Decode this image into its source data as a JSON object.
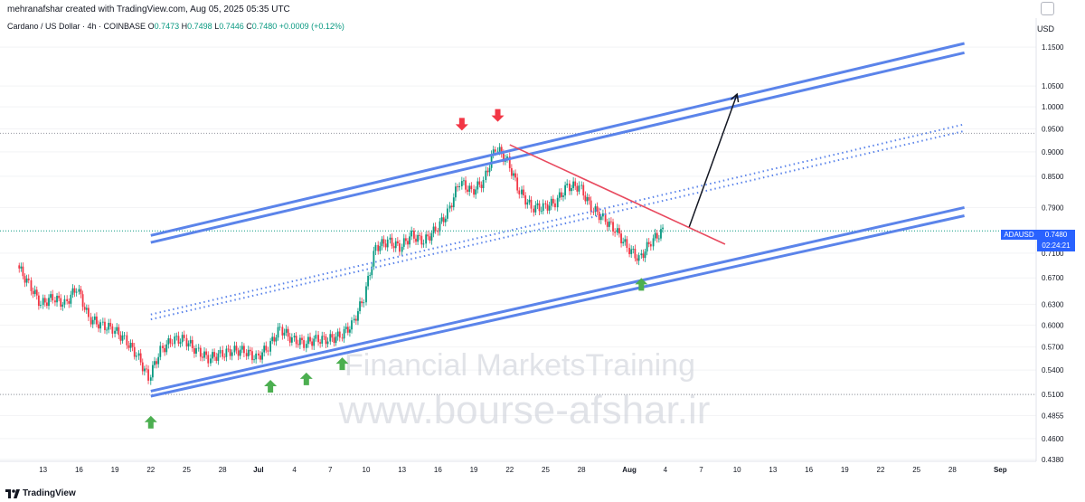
{
  "header": {
    "author_line": "mehranafshar created with TradingView.com, Aug 05, 2025 05:35 UTC",
    "currency": "USD"
  },
  "legend": {
    "symbol": "Cardano / US Dollar · 4h · COINBASE",
    "open_label": "O",
    "open": "0.7473",
    "high_label": "H",
    "high": "0.7498",
    "low_label": "L",
    "low": "0.7446",
    "close_label": "C",
    "close": "0.7480",
    "change": "+0.0009 (+0.12%)"
  },
  "price_label": {
    "ticker": "ADAUSD",
    "price": "0.7480",
    "countdown": "02:24:21"
  },
  "footer": {
    "brand": "TradingView"
  },
  "watermark": {
    "line1": "Financial MarketsTraining",
    "line2": "www.bourse-afshar.ir"
  },
  "colors": {
    "up": "#089981",
    "down": "#f23645",
    "channel": "#5b84ea",
    "resistance": "#e84a5f",
    "up_arrow": "#4caf50",
    "down_arrow": "#f23645",
    "price_tag": "#2962ff"
  },
  "chart_data": {
    "type": "candlestick",
    "title": "Cardano / US Dollar · 4h · COINBASE",
    "y_scale": "log",
    "ylim": [
      0.438,
      1.2
    ],
    "y_ticks": [
      "1.1500",
      "1.0500",
      "1.0000",
      "0.9500",
      "0.9000",
      "0.8500",
      "0.7900",
      "0.7100",
      "0.6700",
      "0.6300",
      "0.6000",
      "0.5700",
      "0.5400",
      "0.5100",
      "0.4855",
      "0.4600",
      "0.4380"
    ],
    "x_ticks": [
      "13",
      "16",
      "19",
      "22",
      "25",
      "28",
      "Jul",
      "4",
      "7",
      "10",
      "13",
      "16",
      "19",
      "22",
      "25",
      "28",
      "Aug",
      "4",
      "7",
      "10",
      "13",
      "16",
      "19",
      "22",
      "25",
      "28",
      "Sep"
    ],
    "x_tick_dates": [
      "2025-06-13",
      "2025-06-16",
      "2025-06-19",
      "2025-06-22",
      "2025-06-25",
      "2025-06-28",
      "2025-07-01",
      "2025-07-04",
      "2025-07-07",
      "2025-07-10",
      "2025-07-13",
      "2025-07-16",
      "2025-07-19",
      "2025-07-22",
      "2025-07-25",
      "2025-07-28",
      "2025-08-01",
      "2025-08-04",
      "2025-08-07",
      "2025-08-10",
      "2025-08-13",
      "2025-08-16",
      "2025-08-19",
      "2025-08-22",
      "2025-08-25",
      "2025-08-28",
      "2025-09-01"
    ],
    "closes": [
      [
        "2025-06-11",
        0.69
      ],
      [
        "2025-06-12",
        0.66
      ],
      [
        "2025-06-13",
        0.63
      ],
      [
        "2025-06-14",
        0.64
      ],
      [
        "2025-06-15",
        0.63
      ],
      [
        "2025-06-16",
        0.655
      ],
      [
        "2025-06-17",
        0.61
      ],
      [
        "2025-06-18",
        0.6
      ],
      [
        "2025-06-19",
        0.595
      ],
      [
        "2025-06-20",
        0.58
      ],
      [
        "2025-06-21",
        0.56
      ],
      [
        "2025-06-22",
        0.53
      ],
      [
        "2025-06-23",
        0.565
      ],
      [
        "2025-06-24",
        0.58
      ],
      [
        "2025-06-25",
        0.58
      ],
      [
        "2025-06-26",
        0.565
      ],
      [
        "2025-06-27",
        0.555
      ],
      [
        "2025-06-28",
        0.56
      ],
      [
        "2025-06-29",
        0.565
      ],
      [
        "2025-06-30",
        0.565
      ],
      [
        "2025-07-01",
        0.555
      ],
      [
        "2025-07-02",
        0.57
      ],
      [
        "2025-07-03",
        0.595
      ],
      [
        "2025-07-04",
        0.58
      ],
      [
        "2025-07-05",
        0.575
      ],
      [
        "2025-07-06",
        0.58
      ],
      [
        "2025-07-07",
        0.58
      ],
      [
        "2025-07-08",
        0.585
      ],
      [
        "2025-07-09",
        0.6
      ],
      [
        "2025-07-10",
        0.64
      ],
      [
        "2025-07-11",
        0.72
      ],
      [
        "2025-07-12",
        0.73
      ],
      [
        "2025-07-13",
        0.72
      ],
      [
        "2025-07-14",
        0.74
      ],
      [
        "2025-07-15",
        0.73
      ],
      [
        "2025-07-16",
        0.75
      ],
      [
        "2025-07-17",
        0.78
      ],
      [
        "2025-07-18",
        0.84
      ],
      [
        "2025-07-19",
        0.82
      ],
      [
        "2025-07-20",
        0.84
      ],
      [
        "2025-07-21",
        0.91
      ],
      [
        "2025-07-22",
        0.88
      ],
      [
        "2025-07-23",
        0.82
      ],
      [
        "2025-07-24",
        0.79
      ],
      [
        "2025-07-25",
        0.79
      ],
      [
        "2025-07-26",
        0.8
      ],
      [
        "2025-07-27",
        0.83
      ],
      [
        "2025-07-28",
        0.83
      ],
      [
        "2025-07-29",
        0.79
      ],
      [
        "2025-07-30",
        0.77
      ],
      [
        "2025-07-31",
        0.75
      ],
      [
        "2025-08-01",
        0.72
      ],
      [
        "2025-08-02",
        0.7
      ],
      [
        "2025-08-03",
        0.73
      ],
      [
        "2025-08-04",
        0.748
      ]
    ],
    "last": {
      "open": 0.7473,
      "high": 0.7498,
      "low": 0.7446,
      "close": 0.748
    },
    "h_levels": [
      0.94,
      0.748,
      0.51
    ],
    "upper_channel": [
      [
        "2025-06-22",
        0.74,
        "2025-08-29",
        1.16
      ],
      [
        "2025-06-22",
        0.728,
        "2025-08-29",
        1.135
      ]
    ],
    "lower_channel": [
      [
        "2025-06-22",
        0.514,
        "2025-08-29",
        0.79
      ],
      [
        "2025-06-22",
        0.508,
        "2025-08-29",
        0.775
      ]
    ],
    "mid_channel": [
      [
        "2025-06-22",
        0.615,
        "2025-08-29",
        0.96
      ],
      [
        "2025-06-22",
        0.608,
        "2025-08-29",
        0.945
      ]
    ],
    "resistance": [
      "2025-07-22",
      0.915,
      "2025-08-09",
      0.725
    ],
    "projection": [
      "2025-08-06",
      0.755,
      "2025-08-10",
      1.03
    ],
    "down_markers": [
      [
        "2025-07-18",
        0.96
      ],
      [
        "2025-07-21",
        0.98
      ]
    ],
    "up_markers": [
      [
        "2025-06-22",
        0.478
      ],
      [
        "2025-07-02",
        0.52
      ],
      [
        "2025-07-05",
        0.529
      ],
      [
        "2025-07-08",
        0.548
      ],
      [
        "2025-08-02",
        0.66
      ]
    ]
  }
}
